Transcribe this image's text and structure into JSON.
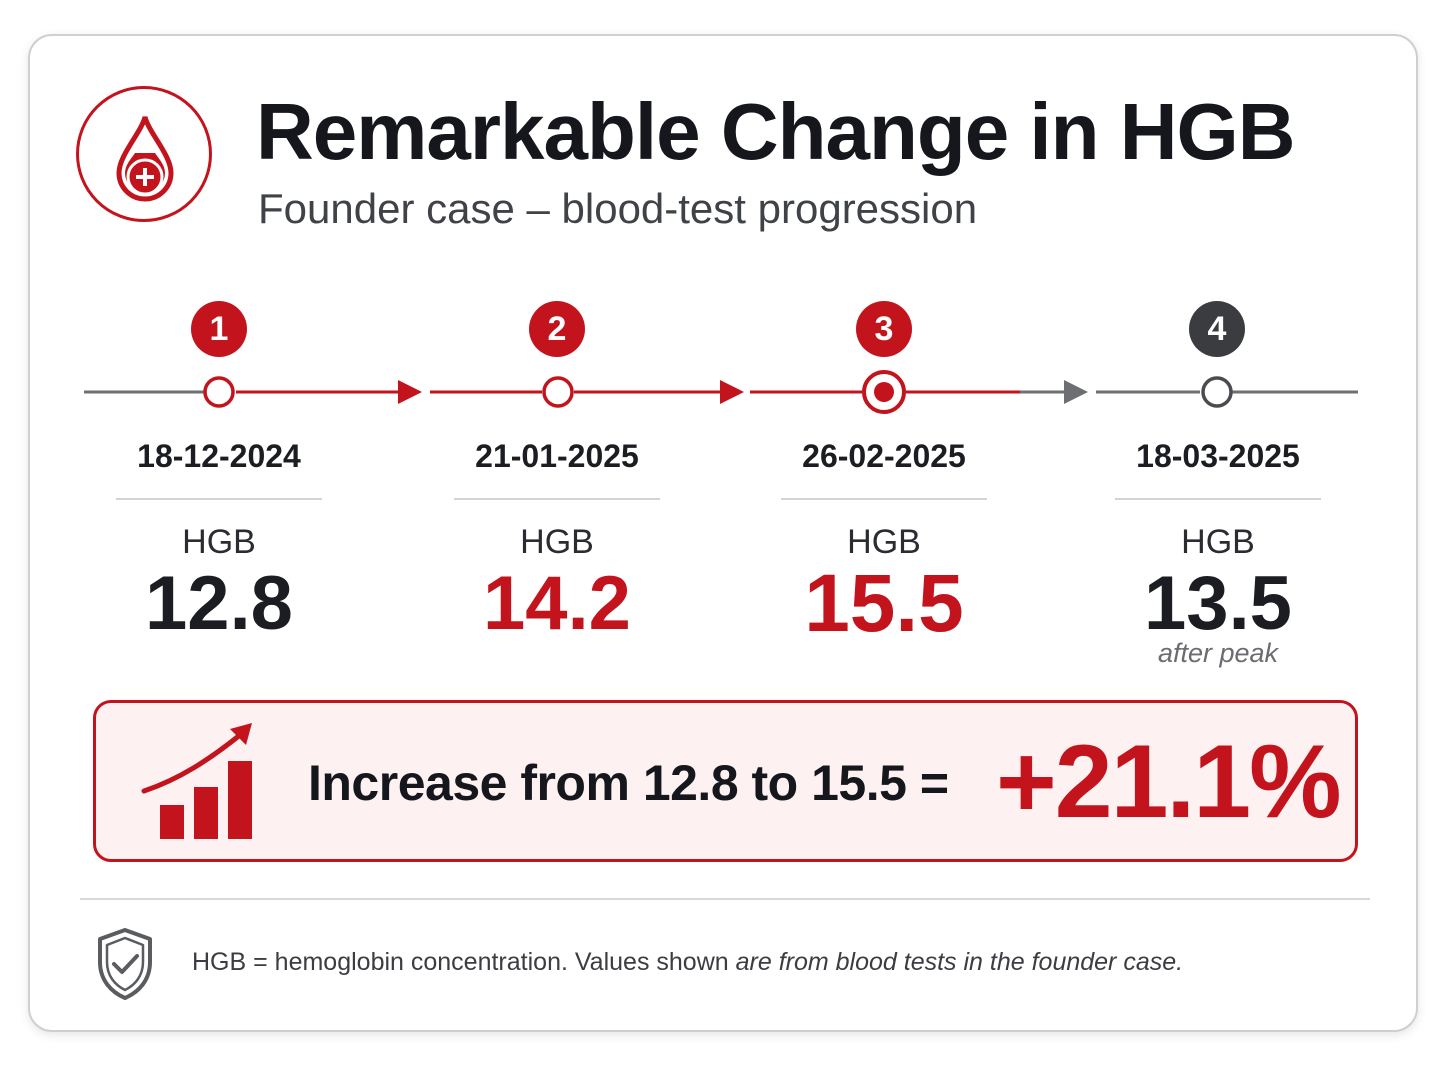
{
  "header": {
    "title": "Remarkable Change in HGB",
    "subtitle": "Founder case – blood-test progression",
    "logo_icon": "blood-drop-plus-icon"
  },
  "colors": {
    "accent": "#c3141d",
    "neutral": "#3a3c40",
    "line_gray": "#6d6f73",
    "summary_bg": "#fdf1f1"
  },
  "timeline": {
    "steps": [
      {
        "number": "1",
        "date": "18-12-2024",
        "label": "HGB",
        "value": "12.8",
        "note": ""
      },
      {
        "number": "2",
        "date": "21-01-2025",
        "label": "HGB",
        "value": "14.2",
        "note": ""
      },
      {
        "number": "3",
        "date": "26-02-2025",
        "label": "HGB",
        "value": "15.5",
        "note": ""
      },
      {
        "number": "4",
        "date": "18-03-2025",
        "label": "HGB",
        "value": "13.5",
        "note": "after peak"
      }
    ]
  },
  "summary": {
    "icon": "rising-bar-chart-icon",
    "text": "Increase from 12.8 to 15.5 =",
    "percent": "+21.1%"
  },
  "footer": {
    "icon": "shield-check-icon",
    "text_plain": "HGB = hemoglobin concentration. Values shown ",
    "text_italic": "are from blood tests in the founder case."
  }
}
